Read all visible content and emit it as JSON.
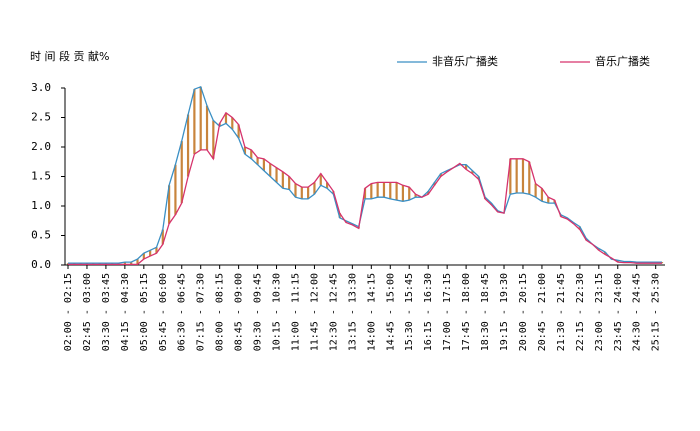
{
  "chart_data": {
    "type": "line",
    "title": "时 间 段 贡 献%",
    "legend": "top right",
    "grid": false,
    "hi_lo_color": "#c8843c",
    "ylim": [
      0,
      3
    ],
    "yticks": [
      {
        "value": 0,
        "label": "0.0"
      },
      0.5,
      {
        "value": 1,
        "label": "1.0"
      },
      1.5,
      {
        "value": 2,
        "label": "2.0"
      },
      2.5,
      {
        "value": 3,
        "label": "3.0"
      }
    ],
    "categories": [
      "02:00 - 02:15",
      null,
      null,
      "02:45 - 03:00",
      null,
      null,
      "03:30 - 03:45",
      null,
      null,
      "04:15 - 04:30",
      null,
      null,
      "05:00 - 05:15",
      null,
      null,
      "05:45 - 06:00",
      null,
      null,
      "06:30 - 06:45",
      null,
      null,
      "07:15 - 07:30",
      null,
      null,
      "08:00 - 08:15",
      null,
      null,
      "08:45 - 09:00",
      null,
      null,
      "09:30 - 09:45",
      null,
      null,
      "10:15 - 10:30",
      null,
      null,
      "11:00 - 11:15",
      null,
      null,
      "11:45 - 12:00",
      null,
      null,
      "12:30 - 12:45",
      null,
      null,
      "13:15 - 13:30",
      null,
      null,
      "14:00 - 14:15",
      null,
      null,
      "14:45 - 15:00",
      null,
      null,
      "15:30 - 15:45",
      null,
      null,
      "16:15 - 16:30",
      null,
      null,
      "17:00 - 17:15",
      null,
      null,
      "17:45 - 18:00",
      null,
      null,
      "18:30 - 18:45",
      null,
      null,
      "19:15 - 19:30",
      null,
      null,
      "20:00 - 20:15",
      null,
      null,
      "20:45 - 21:00",
      null,
      null,
      "21:30 - 21:45",
      null,
      null,
      "22:15 - 22:30",
      null,
      null,
      "23:00 - 23:15",
      null,
      null,
      "23:45 - 24:00",
      null,
      null,
      "24:30 - 24:45",
      null,
      null,
      "25:15 - 25:30",
      null
    ],
    "series": [
      {
        "name": "非音乐广播类",
        "color": "#3a8fc4",
        "values": [
          0.03,
          0.03,
          0.03,
          0.03,
          0.03,
          0.03,
          0.03,
          0.03,
          0.03,
          0.05,
          0.05,
          0.1,
          0.2,
          0.25,
          0.3,
          0.6,
          1.35,
          1.7,
          2.1,
          2.55,
          2.98,
          3.02,
          2.7,
          2.45,
          2.35,
          2.4,
          2.3,
          2.15,
          1.88,
          1.8,
          1.7,
          1.6,
          1.5,
          1.4,
          1.3,
          1.28,
          1.15,
          1.12,
          1.12,
          1.2,
          1.35,
          1.3,
          1.2,
          0.8,
          0.75,
          0.7,
          0.65,
          1.12,
          1.12,
          1.15,
          1.15,
          1.12,
          1.1,
          1.08,
          1.1,
          1.15,
          1.15,
          1.25,
          1.4,
          1.55,
          1.6,
          1.65,
          1.7,
          1.7,
          1.6,
          1.5,
          1.15,
          1.05,
          0.92,
          0.88,
          1.2,
          1.22,
          1.22,
          1.2,
          1.15,
          1.08,
          1.05,
          1.05,
          0.85,
          0.8,
          0.72,
          0.65,
          0.45,
          0.35,
          0.28,
          0.22,
          0.1,
          0.08,
          0.06,
          0.06,
          0.05,
          0.05,
          0.05,
          0.05,
          0.05
        ]
      },
      {
        "name": "音乐广播类",
        "color": "#d6336c",
        "values": [
          0.01,
          0.01,
          0.01,
          0.01,
          0.01,
          0.01,
          0.01,
          0.01,
          0.01,
          0.01,
          0.01,
          0.01,
          0.1,
          0.15,
          0.2,
          0.35,
          0.7,
          0.85,
          1.05,
          1.5,
          1.88,
          1.95,
          1.95,
          1.8,
          2.4,
          2.58,
          2.5,
          2.38,
          2.0,
          1.95,
          1.82,
          1.8,
          1.72,
          1.65,
          1.58,
          1.5,
          1.38,
          1.32,
          1.32,
          1.4,
          1.55,
          1.4,
          1.25,
          0.88,
          0.72,
          0.68,
          0.62,
          1.3,
          1.38,
          1.4,
          1.4,
          1.4,
          1.4,
          1.35,
          1.32,
          1.2,
          1.15,
          1.2,
          1.35,
          1.5,
          1.58,
          1.65,
          1.72,
          1.62,
          1.55,
          1.45,
          1.12,
          1.02,
          0.9,
          0.88,
          1.8,
          1.8,
          1.8,
          1.75,
          1.38,
          1.3,
          1.15,
          1.1,
          0.82,
          0.78,
          0.7,
          0.6,
          0.42,
          0.35,
          0.25,
          0.18,
          0.12,
          0.05,
          0.04,
          0.04,
          0.03,
          0.03,
          0.03,
          0.03,
          0.03
        ]
      }
    ]
  }
}
